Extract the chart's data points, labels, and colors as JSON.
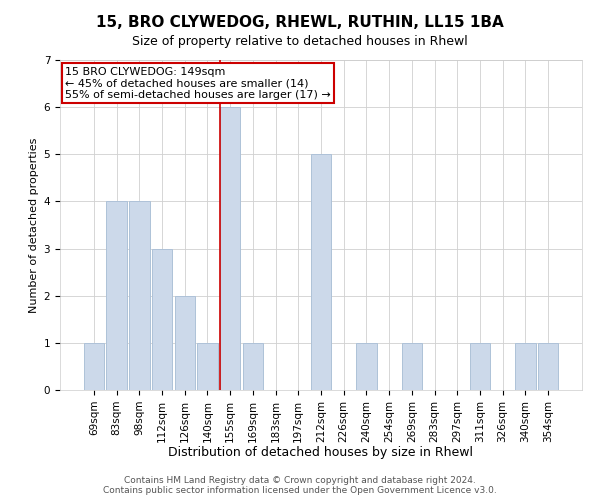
{
  "title": "15, BRO CLYWEDOG, RHEWL, RUTHIN, LL15 1BA",
  "subtitle": "Size of property relative to detached houses in Rhewl",
  "xlabel": "Distribution of detached houses by size in Rhewl",
  "ylabel": "Number of detached properties",
  "categories": [
    "69sqm",
    "83sqm",
    "98sqm",
    "112sqm",
    "126sqm",
    "140sqm",
    "155sqm",
    "169sqm",
    "183sqm",
    "197sqm",
    "212sqm",
    "226sqm",
    "240sqm",
    "254sqm",
    "269sqm",
    "283sqm",
    "297sqm",
    "311sqm",
    "326sqm",
    "340sqm",
    "354sqm"
  ],
  "values": [
    1,
    4,
    4,
    3,
    2,
    1,
    6,
    1,
    0,
    0,
    5,
    0,
    1,
    0,
    1,
    0,
    0,
    1,
    0,
    1,
    1
  ],
  "bar_color": "#ccd9ea",
  "bar_edge_color": "#aec2d8",
  "vline_x_index": 6,
  "vline_color": "#cc0000",
  "ylim": [
    0,
    7
  ],
  "yticks": [
    0,
    1,
    2,
    3,
    4,
    5,
    6,
    7
  ],
  "annotation_text": "15 BRO CLYWEDOG: 149sqm\n← 45% of detached houses are smaller (14)\n55% of semi-detached houses are larger (17) →",
  "annotation_box_edge": "#cc0000",
  "footer_text": "Contains HM Land Registry data © Crown copyright and database right 2024.\nContains public sector information licensed under the Open Government Licence v3.0.",
  "title_fontsize": 11,
  "xlabel_fontsize": 9,
  "ylabel_fontsize": 8,
  "tick_fontsize": 7.5,
  "annotation_fontsize": 8,
  "footer_fontsize": 6.5
}
